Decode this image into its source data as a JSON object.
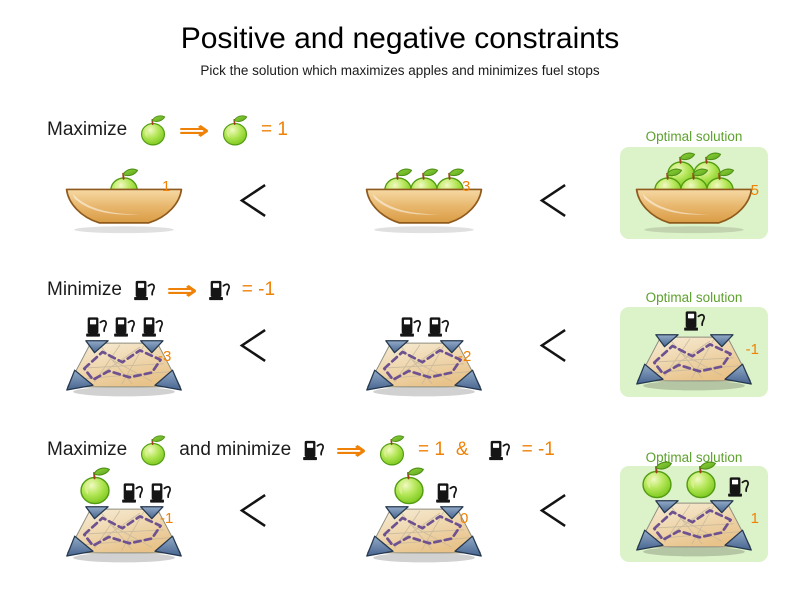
{
  "title": "Positive and negative constraints",
  "subtitle": "Pick the solution which maximizes apples and minimizes fuel stops",
  "glyphs": {
    "implies": "⇒",
    "less_than": "<"
  },
  "colors": {
    "accent_orange": "#ef8206",
    "label_green": "#5ea12e",
    "panel_green": "#dcf2c8",
    "apple_green": "#8ed32f",
    "bowl_tan": "#e7b469",
    "map_parchment": "#e8c288",
    "route_purple": "#6d5190"
  },
  "rows": [
    {
      "name": "maximize-apples",
      "header": {
        "label": "Maximize",
        "equals": "= 1"
      },
      "solutions": [
        {
          "score": "1",
          "icons": {
            "apples": 1,
            "fuel": 0
          }
        },
        {
          "score": "3",
          "icons": {
            "apples": 3,
            "fuel": 0
          }
        }
      ],
      "optimal": {
        "label": "Optimal solution",
        "score": "5",
        "icons": {
          "apples": 5,
          "fuel": 0
        }
      }
    },
    {
      "name": "minimize-fuel-stops",
      "header": {
        "label": "Minimize",
        "equals": "= -1"
      },
      "solutions": [
        {
          "score": "-3",
          "icons": {
            "apples": 0,
            "fuel": 3
          }
        },
        {
          "score": "-2",
          "icons": {
            "apples": 0,
            "fuel": 2
          }
        }
      ],
      "optimal": {
        "label": "Optimal solution",
        "score": "-1",
        "icons": {
          "apples": 0,
          "fuel": 1
        }
      }
    },
    {
      "name": "maximize-apples-and-minimize-fuel",
      "header": {
        "label_max": "Maximize",
        "label_min": "and minimize",
        "apple_equals": "= 1",
        "amp": "&",
        "fuel_equals": "= -1"
      },
      "solutions": [
        {
          "score": "-1",
          "icons": {
            "apples": 1,
            "fuel": 2
          }
        },
        {
          "score": "0",
          "icons": {
            "apples": 1,
            "fuel": 1
          }
        }
      ],
      "optimal": {
        "label": "Optimal solution",
        "score": "1",
        "icons": {
          "apples": 2,
          "fuel": 1
        }
      }
    }
  ]
}
